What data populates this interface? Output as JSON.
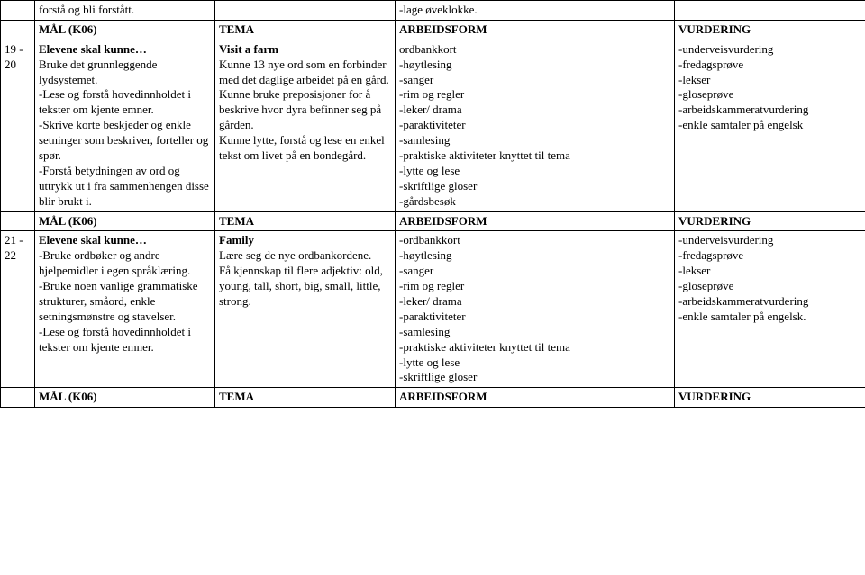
{
  "row0": {
    "col1": "forstå og bli forstått.",
    "col3": "-lage øveklokke."
  },
  "header1": {
    "maal": "MÅL (K06)",
    "tema": "TEMA",
    "arbeidsform": "ARBEIDSFORM",
    "vurdering": "VURDERING"
  },
  "row1": {
    "num": "19 - 20",
    "col1_p0": "Elevene skal kunne…",
    "col1_p1": "Bruke det grunnleggende lydsystemet.",
    "col1_p2": "-Lese og forstå hovedinnholdet i tekster om kjente emner.",
    "col1_p3": "-Skrive korte beskjeder og enkle setninger som beskriver, forteller og spør.",
    "col1_p4": "-Forstå betydningen av ord og uttrykk ut i fra sammenhengen disse blir brukt i.",
    "col2_title": "Visit a farm",
    "col2_p1": "Kunne 13 nye ord som en forbinder med det daglige arbeidet på en gård.",
    "col2_p2": "Kunne bruke preposisjoner for å beskrive hvor dyra befinner seg på gården.",
    "col2_p3": "Kunne lytte, forstå og lese en enkel tekst om livet på en bondegård.",
    "col3_l0": "ordbankkort",
    "col3_l1": "-høytlesing",
    "col3_l2": "-sanger",
    "col3_l3": "-rim og regler",
    "col3_l4": "-leker/ drama",
    "col3_l5": "-paraktiviteter",
    "col3_l6": "-samlesing",
    "col3_l7": "-praktiske aktiviteter knyttet til tema",
    "col3_l8": "-lytte og lese",
    "col3_l9": "-skriftlige gloser",
    "col3_l10": "-gårdsbesøk",
    "col4_l0": "-underveisvurdering",
    "col4_l1": "-fredagsprøve",
    "col4_l2": "-lekser",
    "col4_l3": "-gloseprøve",
    "col4_l4": "-arbeidskammeratvurdering",
    "col4_l5": "-enkle samtaler på engelsk"
  },
  "header2": {
    "maal": "MÅL (K06)",
    "tema": "TEMA",
    "arbeidsform": "ARBEIDSFORM",
    "vurdering": "VURDERING"
  },
  "row2": {
    "num": "21 - 22",
    "col1_p0": "Elevene skal kunne…",
    "col1_p1": "-Bruke ordbøker og andre hjelpemidler i egen språklæring.",
    "col1_p2": "-Bruke noen vanlige grammatiske strukturer, småord, enkle setningsmønstre og stavelser.",
    "col1_p3": "-Lese og forstå hovedinnholdet i tekster om kjente emner.",
    "col2_title": "Family",
    "col2_p1": "Lære seg de nye ordbankordene.",
    "col2_p2": "Få kjennskap til flere adjektiv: old, young, tall, short, big, small, little, strong.",
    "col3_l0": "-ordbankkort",
    "col3_l1": "-høytlesing",
    "col3_l2": "-sanger",
    "col3_l3": "-rim og regler",
    "col3_l4": "-leker/ drama",
    "col3_l5": "-paraktiviteter",
    "col3_l6": "-samlesing",
    "col3_l7": "-praktiske aktiviteter knyttet til tema",
    "col3_l8": "-lytte og lese",
    "col3_l9": "-skriftlige gloser",
    "col4_l0": "-underveisvurdering",
    "col4_l1": "-fredagsprøve",
    "col4_l2": "-lekser",
    "col4_l3": "-gloseprøve",
    "col4_l4": "-arbeidskammeratvurdering",
    "col4_l5": "-enkle samtaler på engelsk."
  },
  "header3": {
    "maal": "MÅL (K06)",
    "tema": "TEMA",
    "arbeidsform": "ARBEIDSFORM",
    "vurdering": "VURDERING"
  }
}
